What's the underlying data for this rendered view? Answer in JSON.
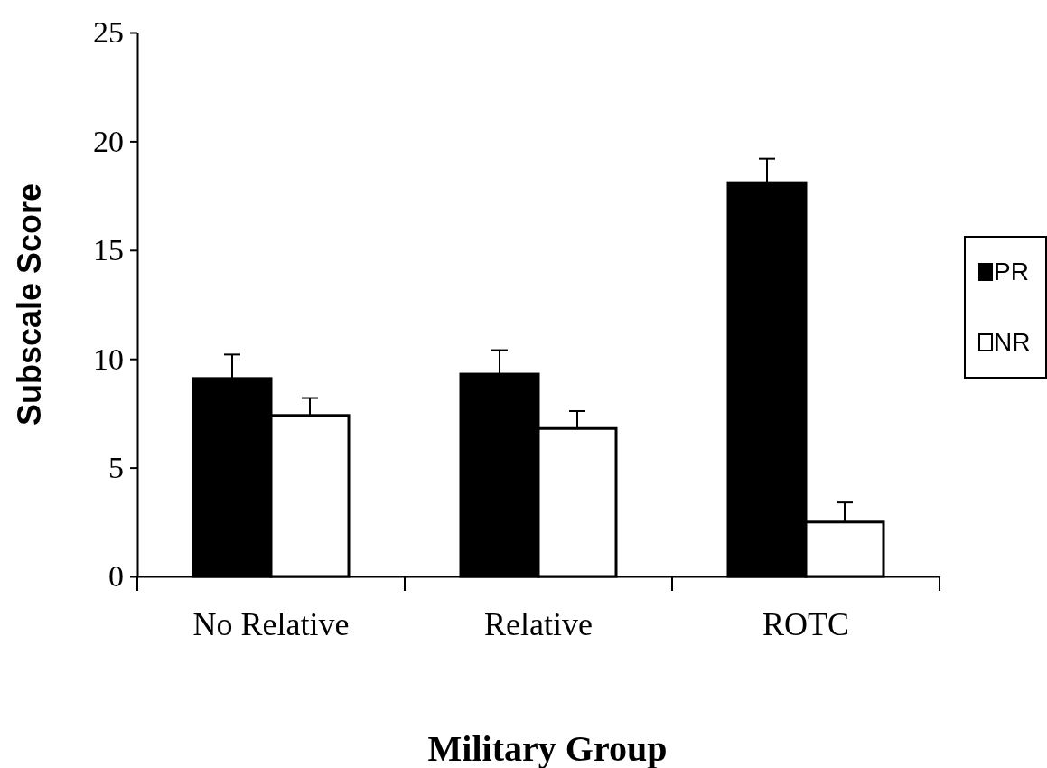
{
  "chart_data": {
    "type": "bar",
    "xlabel": "Military Group",
    "ylabel": "Subscale Score",
    "categories": [
      "No Relative",
      "Relative",
      "ROTC"
    ],
    "series": [
      {
        "name": "PR",
        "color": "#000000",
        "values": [
          9.1,
          9.3,
          18.1
        ],
        "errors": [
          [
            9.1,
            10.2
          ],
          [
            9.3,
            10.4
          ],
          [
            18.1,
            19.2
          ]
        ]
      },
      {
        "name": "NR",
        "color": "#ffffff",
        "values": [
          7.4,
          6.8,
          2.5
        ],
        "errors": [
          [
            7.4,
            8.2
          ],
          [
            6.8,
            7.6
          ],
          [
            2.5,
            3.4
          ]
        ]
      }
    ],
    "ylim": [
      0,
      25
    ],
    "yticks": [
      0,
      5,
      10,
      15,
      20,
      25
    ],
    "grid": false,
    "legend": "right"
  }
}
